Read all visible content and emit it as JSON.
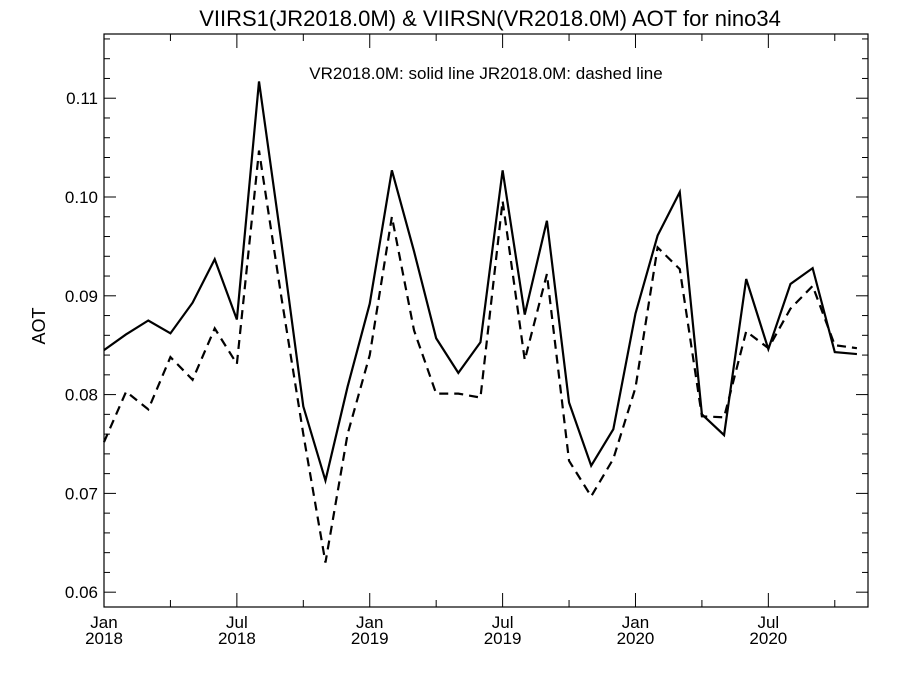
{
  "chart_data": {
    "type": "line",
    "title": "VIIRS1(JR2018.0M) & VIIRSN(VR2018.0M)  AOT for nino34",
    "subtitle": "VR2018.0M: solid line   JR2018.0M: dashed line",
    "ylabel": "AOT",
    "xlabel": "",
    "ylim": [
      0.0585,
      0.1165
    ],
    "xlim": [
      2018.0,
      2020.875
    ],
    "yticks": [
      {
        "value": 0.06,
        "label": "0.06"
      },
      {
        "value": 0.07,
        "label": "0.07"
      },
      {
        "value": 0.08,
        "label": "0.08"
      },
      {
        "value": 0.09,
        "label": "0.09"
      },
      {
        "value": 0.1,
        "label": "0.10"
      },
      {
        "value": 0.11,
        "label": "0.11"
      }
    ],
    "xticks": [
      {
        "value": 2018.0,
        "month": "Jan",
        "year": "2018"
      },
      {
        "value": 2018.5,
        "month": "Jul",
        "year": "2018"
      },
      {
        "value": 2019.0,
        "month": "Jan",
        "year": "2019"
      },
      {
        "value": 2019.5,
        "month": "Jul",
        "year": "2019"
      },
      {
        "value": 2020.0,
        "month": "Jan",
        "year": "2020"
      },
      {
        "value": 2020.5,
        "month": "Jul",
        "year": "2020"
      }
    ],
    "x": [
      "2018-01",
      "2018-02",
      "2018-03",
      "2018-04",
      "2018-05",
      "2018-06",
      "2018-07",
      "2018-08",
      "2018-09",
      "2018-10",
      "2018-11",
      "2018-12",
      "2019-01",
      "2019-02",
      "2019-03",
      "2019-04",
      "2019-05",
      "2019-06",
      "2019-07",
      "2019-08",
      "2019-09",
      "2019-10",
      "2019-11",
      "2019-12",
      "2020-01",
      "2020-02",
      "2020-03",
      "2020-04",
      "2020-05",
      "2020-06",
      "2020-07",
      "2020-08",
      "2020-09",
      "2020-10",
      "2020-11"
    ],
    "series": [
      {
        "name": "VR2018.0M",
        "style": "solid",
        "values": [
          0.0845,
          0.0861,
          0.0875,
          0.0862,
          0.0893,
          0.0937,
          0.0876,
          0.1117,
          0.0956,
          0.0788,
          0.0713,
          0.0808,
          0.0892,
          0.1027,
          0.0945,
          0.0857,
          0.0822,
          0.0853,
          0.1027,
          0.0881,
          0.0976,
          0.0792,
          0.0728,
          0.0765,
          0.0882,
          0.0961,
          0.1005,
          0.078,
          0.0759,
          0.0917,
          0.0846,
          0.0912,
          0.0928,
          0.0843,
          0.0841
        ]
      },
      {
        "name": "JR2018.0M",
        "style": "dashed",
        "values": [
          0.0752,
          0.0803,
          0.0785,
          0.0838,
          0.0815,
          0.0867,
          0.0831,
          0.1047,
          0.09,
          0.076,
          0.063,
          0.076,
          0.084,
          0.098,
          0.0865,
          0.0801,
          0.0801,
          0.0797,
          0.0996,
          0.0835,
          0.0922,
          0.0733,
          0.0697,
          0.0735,
          0.0807,
          0.0949,
          0.0927,
          0.0778,
          0.0777,
          0.0864,
          0.0847,
          0.0887,
          0.091,
          0.085,
          0.0847
        ]
      }
    ],
    "grid": false,
    "legend": "none"
  }
}
